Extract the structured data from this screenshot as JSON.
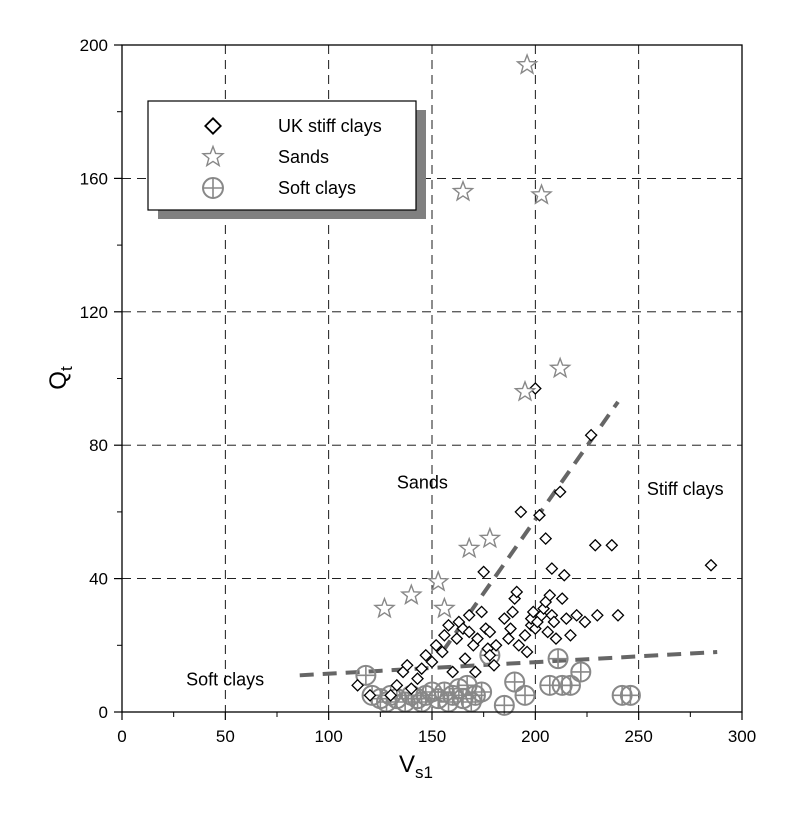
{
  "chart_data": {
    "type": "scatter",
    "xlabel": {
      "main": "V",
      "sub": "s1"
    },
    "ylabel": {
      "main": "Q",
      "sub": "t"
    },
    "xlim": [
      0,
      300
    ],
    "ylim": [
      0,
      200
    ],
    "xticks": [
      0,
      50,
      100,
      150,
      200,
      250,
      300
    ],
    "yticks": [
      0,
      40,
      80,
      120,
      160,
      200
    ],
    "grid": true,
    "legend_position": "top-left",
    "series": [
      {
        "name": "UK stiff clays",
        "marker": "diamond",
        "color": "#000000",
        "points": [
          [
            114,
            8
          ],
          [
            120,
            5
          ],
          [
            130,
            5
          ],
          [
            133,
            8
          ],
          [
            136,
            12
          ],
          [
            138,
            14
          ],
          [
            140,
            7
          ],
          [
            143,
            10
          ],
          [
            145,
            13
          ],
          [
            147,
            17
          ],
          [
            150,
            15
          ],
          [
            152,
            20
          ],
          [
            155,
            18
          ],
          [
            156,
            23
          ],
          [
            158,
            26
          ],
          [
            160,
            12
          ],
          [
            162,
            22
          ],
          [
            163,
            27
          ],
          [
            165,
            25
          ],
          [
            166,
            16
          ],
          [
            168,
            24
          ],
          [
            168,
            29
          ],
          [
            170,
            20
          ],
          [
            171,
            12
          ],
          [
            172,
            22
          ],
          [
            174,
            30
          ],
          [
            175,
            42
          ],
          [
            176,
            25
          ],
          [
            177,
            19
          ],
          [
            178,
            17
          ],
          [
            178,
            24
          ],
          [
            180,
            14
          ],
          [
            181,
            20
          ],
          [
            185,
            28
          ],
          [
            187,
            22
          ],
          [
            188,
            25
          ],
          [
            189,
            30
          ],
          [
            190,
            34
          ],
          [
            191,
            36
          ],
          [
            192,
            20
          ],
          [
            193,
            60
          ],
          [
            195,
            23
          ],
          [
            196,
            18
          ],
          [
            198,
            26
          ],
          [
            198,
            28
          ],
          [
            199,
            30
          ],
          [
            200,
            25
          ],
          [
            200,
            97
          ],
          [
            201,
            27
          ],
          [
            202,
            59
          ],
          [
            203,
            29
          ],
          [
            204,
            31
          ],
          [
            205,
            52
          ],
          [
            205,
            33
          ],
          [
            206,
            24
          ],
          [
            207,
            35
          ],
          [
            208,
            29
          ],
          [
            208,
            43
          ],
          [
            209,
            27
          ],
          [
            210,
            22
          ],
          [
            212,
            66
          ],
          [
            213,
            34
          ],
          [
            214,
            41
          ],
          [
            215,
            28
          ],
          [
            217,
            23
          ],
          [
            220,
            29
          ],
          [
            224,
            27
          ],
          [
            227,
            83
          ],
          [
            229,
            50
          ],
          [
            230,
            29
          ],
          [
            237,
            50
          ],
          [
            240,
            29
          ],
          [
            285,
            44
          ]
        ]
      },
      {
        "name": "Sands",
        "marker": "star",
        "color": "#888888",
        "points": [
          [
            127,
            31
          ],
          [
            140,
            35
          ],
          [
            153,
            39
          ],
          [
            156,
            31
          ],
          [
            165,
            156
          ],
          [
            168,
            49
          ],
          [
            178,
            52
          ],
          [
            195,
            96
          ],
          [
            196,
            194
          ],
          [
            203,
            155
          ],
          [
            212,
            103
          ]
        ]
      },
      {
        "name": "Soft clays",
        "marker": "circle-plus",
        "color": "#888888",
        "points": [
          [
            118,
            11
          ],
          [
            121,
            5
          ],
          [
            125,
            4
          ],
          [
            128,
            3
          ],
          [
            130,
            5
          ],
          [
            133,
            4
          ],
          [
            137,
            3
          ],
          [
            140,
            5
          ],
          [
            143,
            4
          ],
          [
            145,
            3
          ],
          [
            147,
            5
          ],
          [
            150,
            6
          ],
          [
            153,
            4
          ],
          [
            156,
            6
          ],
          [
            158,
            3
          ],
          [
            160,
            5
          ],
          [
            163,
            7
          ],
          [
            165,
            4
          ],
          [
            167,
            8
          ],
          [
            169,
            3
          ],
          [
            171,
            5
          ],
          [
            174,
            6
          ],
          [
            178,
            17
          ],
          [
            185,
            2
          ],
          [
            190,
            9
          ],
          [
            195,
            5
          ],
          [
            207,
            8
          ],
          [
            211,
            16
          ],
          [
            213,
            8
          ],
          [
            217,
            8
          ],
          [
            222,
            12
          ],
          [
            242,
            5
          ],
          [
            246,
            5
          ]
        ]
      }
    ],
    "reference_lines": [
      {
        "name": "sands-stiff-clays-boundary",
        "style": "dashed",
        "color": "#666666",
        "points": [
          [
            155,
            18
          ],
          [
            240,
            93
          ]
        ]
      },
      {
        "name": "soft-clays-boundary",
        "style": "dashed",
        "color": "#666666",
        "points": [
          [
            86,
            11
          ],
          [
            288,
            18
          ]
        ]
      }
    ],
    "annotations": [
      {
        "text": "Sands",
        "x": 133,
        "y": 67
      },
      {
        "text": "Stiff clays",
        "x": 254,
        "y": 65
      },
      {
        "text": "Soft clays",
        "x": 31,
        "y": 8
      }
    ]
  }
}
